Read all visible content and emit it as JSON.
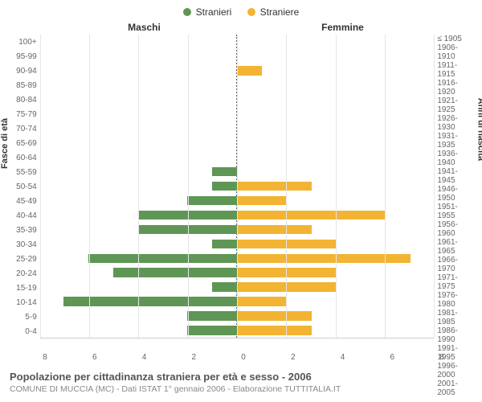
{
  "chart": {
    "type": "population-pyramid",
    "legend": [
      {
        "label": "Stranieri",
        "color": "#5f9655"
      },
      {
        "label": "Straniere",
        "color": "#f2b432"
      }
    ],
    "left_panel_title": "Maschi",
    "right_panel_title": "Femmine",
    "left_axis_title": "Fasce di età",
    "right_axis_title": "Anni di nascita",
    "background_color": "#ffffff",
    "grid_color": "#e6e6e6",
    "center_line_color": "#666666",
    "bar_color_male": "#5f9655",
    "bar_color_female": "#f2b432",
    "x_max": 8,
    "x_ticks": [
      8,
      6,
      4,
      2,
      0,
      2,
      4,
      6,
      8
    ],
    "age_labels": [
      "100+",
      "95-99",
      "90-94",
      "85-89",
      "80-84",
      "75-79",
      "70-74",
      "65-69",
      "60-64",
      "55-59",
      "50-54",
      "45-49",
      "40-44",
      "35-39",
      "30-34",
      "25-29",
      "20-24",
      "15-19",
      "10-14",
      "5-9",
      "0-4"
    ],
    "birth_labels": [
      "≤ 1905",
      "1906-1910",
      "1911-1915",
      "1916-1920",
      "1921-1925",
      "1926-1930",
      "1931-1935",
      "1936-1940",
      "1941-1945",
      "1946-1950",
      "1951-1955",
      "1956-1960",
      "1961-1965",
      "1966-1970",
      "1971-1975",
      "1976-1980",
      "1981-1985",
      "1986-1990",
      "1991-1995",
      "1996-2000",
      "2001-2005"
    ],
    "male": [
      0,
      0,
      0,
      0,
      0,
      0,
      0,
      0,
      0,
      1,
      1,
      2,
      4,
      4,
      1,
      6,
      5,
      1,
      7,
      2,
      2
    ],
    "female": [
      0,
      0,
      1,
      0,
      0,
      0,
      0,
      0,
      0,
      0,
      3,
      2,
      6,
      3,
      4,
      7,
      4,
      4,
      2,
      3,
      3
    ],
    "label_fontsize": 10,
    "title_fontsize": 12
  },
  "footer": {
    "title": "Popolazione per cittadinanza straniera per età e sesso - 2006",
    "subtitle": "COMUNE DI MUCCIA (MC) - Dati ISTAT 1° gennaio 2006 - Elaborazione TUTTITALIA.IT"
  }
}
